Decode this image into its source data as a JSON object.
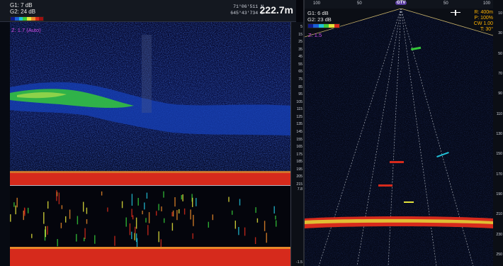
{
  "left": {
    "g1": "G1:  7 dB",
    "g2": "G2:  24 dB",
    "coord_lat": "71°06'511 N",
    "coord_lon": "645°43'734 E",
    "depth": "222.7m",
    "zoom": "Z: 1.7 (Auto)",
    "scale_ticks": [
      "5",
      "15",
      "25",
      "35",
      "45",
      "55",
      "65",
      "75",
      "85",
      "95",
      "105",
      "115",
      "125",
      "135",
      "145",
      "155",
      "165",
      "175",
      "185",
      "195",
      "205",
      "215"
    ],
    "lower_ticks": [
      "7.8",
      "-1.5"
    ]
  },
  "right": {
    "top_ticks": [
      "100",
      "50",
      "GTV",
      "50",
      "100"
    ],
    "g1": "G1:  6 dB",
    "g2": "G2:  23 dB",
    "zoom": "Z: 1.5",
    "info": [
      "R: 400m",
      "P: 100%",
      "CW 1.00",
      "T: 30°"
    ],
    "scale_ticks": [
      "10",
      "30",
      "50",
      "70",
      "90",
      "110",
      "130",
      "150",
      "170",
      "190",
      "210",
      "230",
      "250"
    ]
  },
  "colors": {
    "bottom_echo": "#d62a1c",
    "school": "#35c83a",
    "accent_magenta": "#d04de6",
    "info_orange": "#ffb300"
  }
}
